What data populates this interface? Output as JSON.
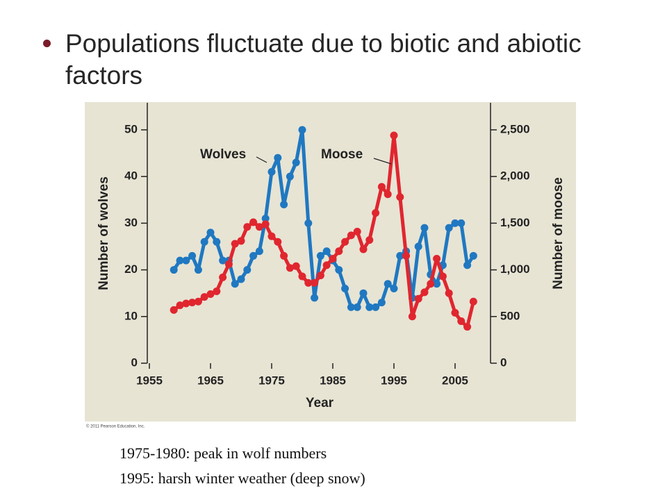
{
  "slide": {
    "bullet": "Populations fluctuate due to biotic and abiotic factors",
    "notes": [
      "1975-1980: peak in wolf numbers",
      "1995: harsh winter weather (deep snow)"
    ]
  },
  "chart_data": {
    "type": "line",
    "x_label": "Year",
    "y_label": "Number of wolves",
    "y2_label": "Number of moose",
    "credit": "© 2011 Pearson Education, Inc.",
    "x": [
      1959,
      1960,
      1961,
      1962,
      1963,
      1964,
      1965,
      1966,
      1967,
      1968,
      1969,
      1970,
      1971,
      1972,
      1973,
      1974,
      1975,
      1976,
      1977,
      1978,
      1979,
      1980,
      1981,
      1982,
      1983,
      1984,
      1985,
      1986,
      1987,
      1988,
      1989,
      1990,
      1991,
      1992,
      1993,
      1994,
      1995,
      1996,
      1997,
      1998,
      1999,
      2000,
      2001,
      2002,
      2003,
      2004,
      2005,
      2006,
      2007,
      2008
    ],
    "series": [
      {
        "name": "Wolves",
        "color": "#1f78c1",
        "axis": "y",
        "values": [
          20,
          22,
          22,
          23,
          20,
          26,
          28,
          26,
          22,
          22,
          17,
          18,
          20,
          23,
          24,
          31,
          41,
          44,
          34,
          40,
          43,
          50,
          30,
          14,
          23,
          24,
          22,
          20,
          16,
          12,
          12,
          15,
          12,
          12,
          13,
          17,
          16,
          23,
          24,
          14,
          25,
          29,
          19,
          17,
          21,
          29,
          30,
          30,
          21,
          23
        ]
      },
      {
        "name": "Moose",
        "color": "#e0262f",
        "axis": "y2",
        "values": [
          570,
          620,
          640,
          650,
          660,
          710,
          740,
          770,
          920,
          1060,
          1280,
          1310,
          1460,
          1510,
          1460,
          1490,
          1360,
          1300,
          1150,
          1020,
          1040,
          930,
          860,
          860,
          940,
          1050,
          1120,
          1200,
          1300,
          1370,
          1410,
          1220,
          1320,
          1610,
          1890,
          1810,
          2440,
          1780,
          1150,
          500,
          690,
          760,
          850,
          1120,
          930,
          750,
          540,
          450,
          390,
          660
        ]
      }
    ],
    "xlim": [
      1955,
      2010.8
    ],
    "xticks": [
      1955,
      1965,
      1975,
      1985,
      1995,
      2005
    ],
    "ylim": [
      0,
      55.8
    ],
    "yticks": [
      0,
      10,
      20,
      30,
      40,
      50
    ],
    "y2lim": [
      0,
      2790
    ],
    "y2ticks": [
      0,
      500,
      {
        "value": 1000,
        "label": "1,000"
      },
      {
        "value": 1500,
        "label": "1,500"
      },
      {
        "value": 2000,
        "label": "2,000"
      },
      {
        "value": 2500,
        "label": "2,500"
      }
    ],
    "grid": false
  }
}
